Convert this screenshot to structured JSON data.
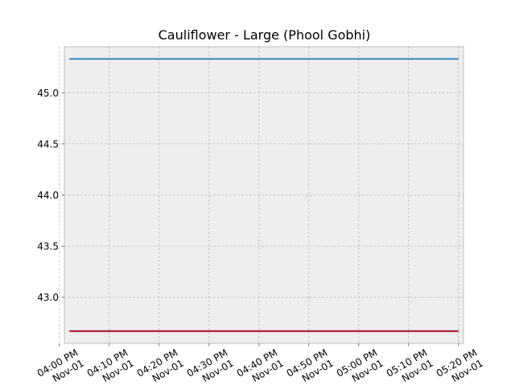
{
  "chart_data": {
    "type": "line",
    "title": "Cauliflower - Large (Phool Gobhi)",
    "xlabel": "",
    "ylabel": "",
    "x_ticks": [
      {
        "time": "04:00 PM",
        "date": "Nov-01"
      },
      {
        "time": "04:10 PM",
        "date": "Nov-01"
      },
      {
        "time": "04:20 PM",
        "date": "Nov-01"
      },
      {
        "time": "04:30 PM",
        "date": "Nov-01"
      },
      {
        "time": "04:40 PM",
        "date": "Nov-01"
      },
      {
        "time": "04:50 PM",
        "date": "Nov-01"
      },
      {
        "time": "05:00 PM",
        "date": "Nov-01"
      },
      {
        "time": "05:10 PM",
        "date": "Nov-01"
      },
      {
        "time": "05:20 PM",
        "date": "Nov-01"
      }
    ],
    "y_ticks": [
      "43.0",
      "43.5",
      "44.0",
      "44.5",
      "45.0"
    ],
    "ylim": [
      42.55,
      45.45
    ],
    "xlim": [
      "04:01 PM",
      "05:21 PM"
    ],
    "series": [
      {
        "color": "#348ABD",
        "x": [
          "04:02 PM",
          "05:20 PM"
        ],
        "y": [
          45.33,
          45.33
        ]
      },
      {
        "color": "#A60628",
        "x": [
          "04:02 PM",
          "05:20 PM"
        ],
        "y": [
          42.67,
          42.67
        ]
      }
    ],
    "grid": true,
    "background": "#EEEEEE"
  }
}
